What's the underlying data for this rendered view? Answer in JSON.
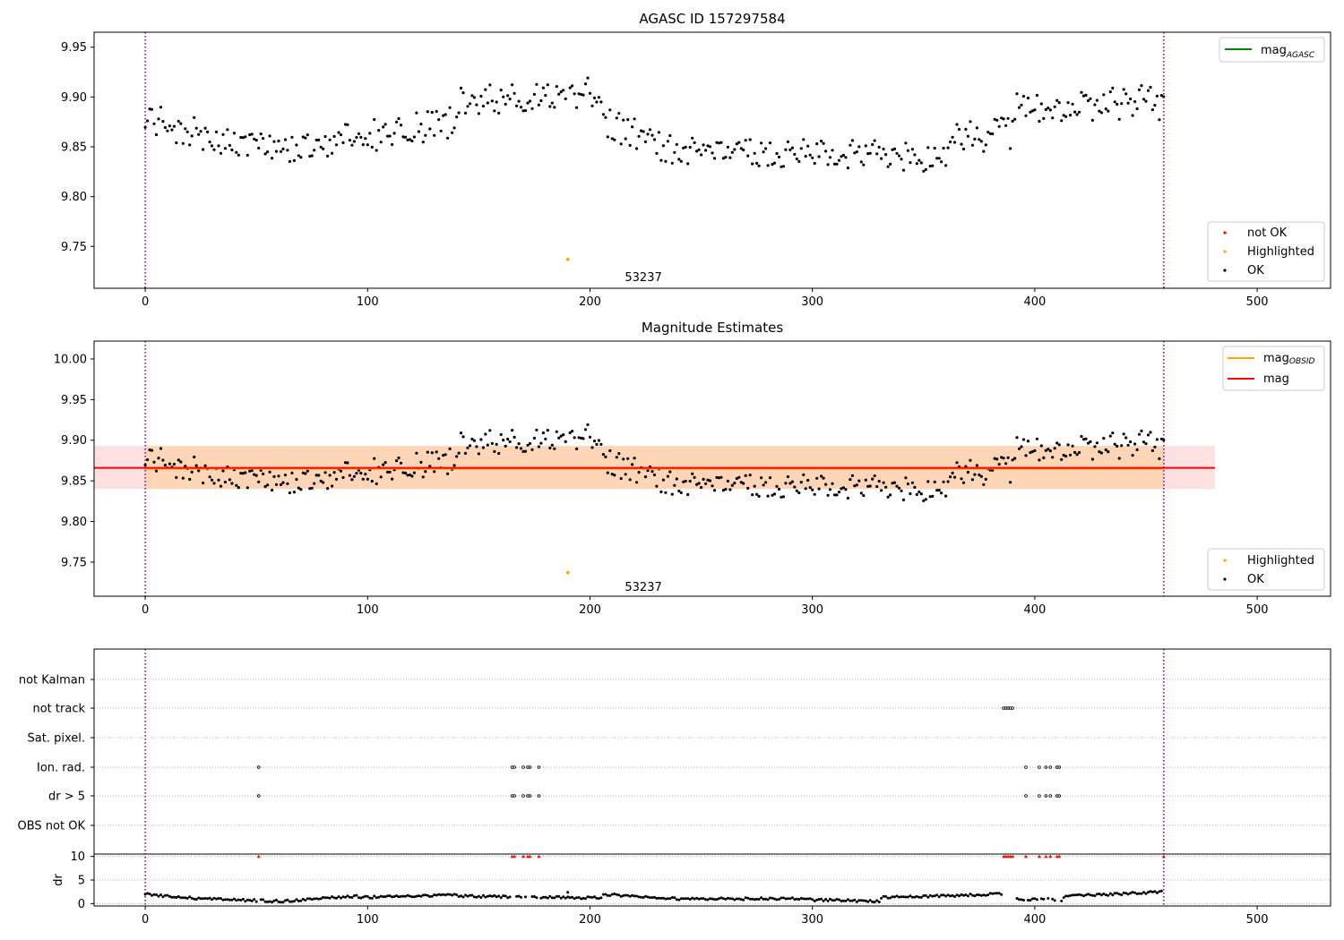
{
  "chart_data": [
    {
      "type": "scatter",
      "title": "AGASC ID 157297584",
      "xlabel": "",
      "ylabel": "",
      "xlim": [
        -23,
        533
      ],
      "ylim": [
        9.708,
        9.965
      ],
      "xticks": [
        "0",
        "100",
        "200",
        "300",
        "400",
        "500"
      ],
      "yticks": [
        "9.75",
        "9.80",
        "9.85",
        "9.90",
        "9.95"
      ],
      "vlines": [
        0,
        458
      ],
      "annotation": {
        "text": "53237",
        "x": 224,
        "y": 9.718
      },
      "legend_lines": [
        {
          "label": "mag",
          "sub": "AGASC",
          "color": "#008000"
        }
      ],
      "legend_points": [
        {
          "label": "not OK",
          "color": "#ff0000"
        },
        {
          "label": "Highlighted",
          "color": "#ffa500"
        },
        {
          "label": "OK",
          "color": "#000000"
        }
      ],
      "highlighted": {
        "x": 190,
        "y": 9.737
      },
      "ok_segments": [
        {
          "x0": 0,
          "x1": 25,
          "v0": 9.885,
          "v1": 9.86,
          "amp": 0.018
        },
        {
          "x0": 25,
          "x1": 70,
          "v0": 9.858,
          "v1": 9.845,
          "amp": 0.014
        },
        {
          "x0": 70,
          "x1": 140,
          "v0": 9.85,
          "v1": 9.875,
          "amp": 0.016
        },
        {
          "x0": 140,
          "x1": 205,
          "v0": 9.895,
          "v1": 9.905,
          "amp": 0.015
        },
        {
          "x0": 205,
          "x1": 240,
          "v0": 9.875,
          "v1": 9.845,
          "amp": 0.016
        },
        {
          "x0": 240,
          "x1": 360,
          "v0": 9.845,
          "v1": 9.84,
          "amp": 0.015
        },
        {
          "x0": 360,
          "x1": 390,
          "v0": 9.86,
          "v1": 9.865,
          "amp": 0.018
        },
        {
          "x0": 390,
          "x1": 460,
          "v0": 9.89,
          "v1": 9.895,
          "amp": 0.018
        }
      ]
    },
    {
      "type": "scatter",
      "title": "Magnitude Estimates",
      "xlabel": "",
      "ylabel": "",
      "xlim": [
        -23,
        533
      ],
      "ylim": [
        9.708,
        10.022
      ],
      "xticks": [
        "0",
        "100",
        "200",
        "300",
        "400",
        "500"
      ],
      "yticks": [
        "9.75",
        "9.80",
        "9.85",
        "9.90",
        "9.95",
        "10.00"
      ],
      "vlines": [
        0,
        458
      ],
      "annotation": {
        "text": "53237",
        "x": 224,
        "y": 9.718
      },
      "mag_obsid": 9.865,
      "mag": 9.866,
      "mag_band": [
        9.84,
        9.893
      ],
      "mag_band_xlim": [
        -23,
        481
      ],
      "obsid_band_xlim": [
        0,
        458
      ],
      "legend_lines": [
        {
          "label": "mag",
          "sub": "OBSID",
          "color": "#ffa500"
        },
        {
          "label": "mag",
          "sub": "",
          "color": "#ff0000"
        }
      ],
      "legend_points": [
        {
          "label": "Highlighted",
          "color": "#ffa500"
        },
        {
          "label": "OK",
          "color": "#000000"
        }
      ],
      "highlighted": {
        "x": 190,
        "y": 9.737
      }
    },
    {
      "type": "scatter",
      "title": "",
      "xlim": [
        -23,
        533
      ],
      "xticks": [
        "0",
        "100",
        "200",
        "300",
        "400",
        "500"
      ],
      "vlines": [
        0,
        458
      ],
      "flag_labels": [
        "not Kalman",
        "not track",
        "Sat. pixel.",
        "Ion. rad.",
        "dr > 5",
        "OBS not OK"
      ],
      "flags": {
        "not track": [
          386,
          387,
          388,
          389,
          390
        ],
        "Ion. rad.": [
          51,
          165,
          166,
          170,
          172,
          173,
          177,
          396,
          402,
          405,
          407,
          410,
          411
        ],
        "dr > 5": [
          51,
          165,
          166,
          170,
          172,
          173,
          177,
          396,
          402,
          405,
          407,
          410,
          411
        ]
      },
      "dr_ylabel": "dr",
      "dr_yticks": [
        "0",
        "5",
        "10"
      ],
      "dr_ylim": [
        -0.5,
        10.5
      ],
      "dr_outliers": [
        51,
        165,
        166,
        170,
        172,
        173,
        177,
        386,
        387,
        388,
        389,
        390,
        396,
        402,
        405,
        407,
        410,
        411,
        458
      ],
      "dr_segments": [
        {
          "x0": 0,
          "x1": 25,
          "v0": 2.0,
          "v1": 1.0
        },
        {
          "x0": 25,
          "x1": 60,
          "v0": 1.0,
          "v1": 0.5
        },
        {
          "x0": 60,
          "x1": 95,
          "v0": 0.5,
          "v1": 1.6
        },
        {
          "x0": 95,
          "x1": 140,
          "v0": 1.3,
          "v1": 1.8
        },
        {
          "x0": 140,
          "x1": 205,
          "v0": 1.6,
          "v1": 1.2
        },
        {
          "x0": 205,
          "x1": 240,
          "v0": 2.0,
          "v1": 1.0
        },
        {
          "x0": 240,
          "x1": 300,
          "v0": 1.0,
          "v1": 1.0
        },
        {
          "x0": 300,
          "x1": 330,
          "v0": 0.8,
          "v1": 0.5
        },
        {
          "x0": 330,
          "x1": 385,
          "v0": 1.3,
          "v1": 2.0
        },
        {
          "x0": 392,
          "x1": 412,
          "v0": 1.0,
          "v1": 0.8
        },
        {
          "x0": 412,
          "x1": 458,
          "v0": 1.5,
          "v1": 2.5
        }
      ]
    }
  ]
}
